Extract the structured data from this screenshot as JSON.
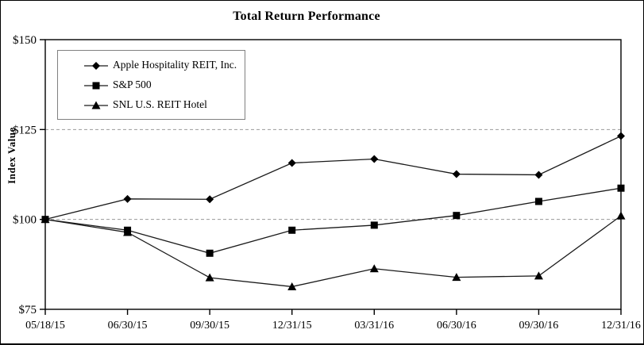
{
  "chart_data": {
    "type": "line",
    "title": "Total Return Performance",
    "xlabel": "",
    "ylabel": "Index Value",
    "ylim": [
      75,
      150
    ],
    "y_ticks": {
      "values": [
        75,
        100,
        125,
        150
      ],
      "labels": [
        "$75",
        "$100",
        "$125",
        "$150"
      ]
    },
    "gridlines": {
      "values": [
        100,
        125
      ],
      "style": "dashed"
    },
    "legend_position": "top-left-inside",
    "categories": [
      "05/18/15",
      "06/30/15",
      "09/30/15",
      "12/31/15",
      "03/31/16",
      "06/30/16",
      "09/30/16",
      "12/31/16"
    ],
    "series": [
      {
        "name": "Apple Hospitality REIT, Inc.",
        "marker": "diamond",
        "values": [
          100,
          105.7,
          105.6,
          115.7,
          116.8,
          112.6,
          112.4,
          123.2
        ]
      },
      {
        "name": "S&P 500",
        "marker": "square",
        "values": [
          100,
          97.0,
          90.6,
          97.0,
          98.4,
          101.1,
          105.0,
          108.7
        ]
      },
      {
        "name": "SNL U.S. REIT Hotel",
        "marker": "triangle",
        "values": [
          100,
          96.4,
          83.8,
          81.3,
          86.3,
          83.9,
          84.3,
          101.0
        ]
      }
    ],
    "colors": {
      "line": "#1a1a1a",
      "marker": "#000000",
      "axis": "#000000",
      "gridline": "#999999",
      "legend_border": "#808080",
      "background": "#ffffff"
    }
  }
}
